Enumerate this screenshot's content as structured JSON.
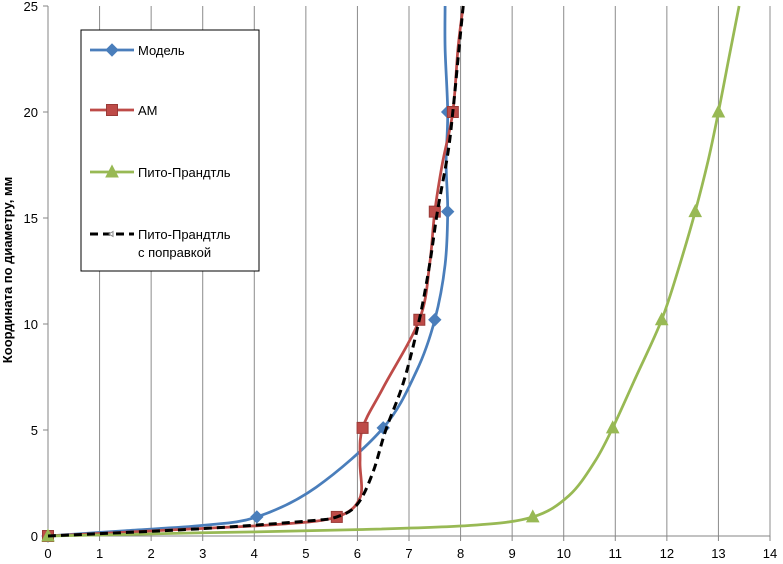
{
  "chart_data": {
    "type": "line",
    "title": "",
    "xlabel": "",
    "ylabel": "Координата по диаметру, мм",
    "xlim": [
      0,
      14
    ],
    "ylim": [
      0,
      25
    ],
    "xticks": [
      0,
      1,
      2,
      3,
      4,
      5,
      6,
      7,
      8,
      9,
      10,
      11,
      12,
      13,
      14
    ],
    "yticks": [
      0,
      5,
      10,
      15,
      20,
      25
    ],
    "grid": "vertical",
    "legend_position": "top-left",
    "series": [
      {
        "name": "Модель",
        "color": "#4a7ebb",
        "marker": "diamond",
        "dashed": false,
        "points": [
          [
            0,
            0
          ],
          [
            4.05,
            0.9
          ],
          [
            6.5,
            5.1
          ],
          [
            7.5,
            10.2
          ],
          [
            7.75,
            15.3
          ],
          [
            7.75,
            20.0
          ]
        ],
        "curve": [
          [
            0,
            0
          ],
          [
            1.5,
            0.25
          ],
          [
            3,
            0.5
          ],
          [
            4.05,
            0.9
          ],
          [
            5.2,
            2.3
          ],
          [
            6.5,
            5.1
          ],
          [
            7.15,
            7.8
          ],
          [
            7.5,
            10.2
          ],
          [
            7.7,
            12.8
          ],
          [
            7.75,
            15.3
          ],
          [
            7.72,
            17.6
          ],
          [
            7.75,
            20.0
          ],
          [
            7.7,
            23
          ],
          [
            7.7,
            25
          ]
        ]
      },
      {
        "name": "АМ",
        "color": "#be4b48",
        "marker": "square",
        "dashed": false,
        "points": [
          [
            0,
            0
          ],
          [
            5.6,
            0.9
          ],
          [
            6.1,
            5.1
          ],
          [
            7.2,
            10.2
          ],
          [
            7.5,
            15.3
          ],
          [
            7.85,
            20.0
          ]
        ],
        "curve": [
          [
            0,
            0
          ],
          [
            2.5,
            0.3
          ],
          [
            4.5,
            0.55
          ],
          [
            5.6,
            0.9
          ],
          [
            6.05,
            1.8
          ],
          [
            6.05,
            3.5
          ],
          [
            6.1,
            5.1
          ],
          [
            6.5,
            7.0
          ],
          [
            7.2,
            10.2
          ],
          [
            7.4,
            12.8
          ],
          [
            7.5,
            15.3
          ],
          [
            7.65,
            17.6
          ],
          [
            7.85,
            20.0
          ],
          [
            7.95,
            23
          ],
          [
            8.05,
            25
          ]
        ]
      },
      {
        "name": "Пито-Прандтль",
        "color": "#98b954",
        "marker": "triangle",
        "dashed": false,
        "points": [
          [
            0,
            0
          ],
          [
            9.4,
            0.9
          ],
          [
            10.95,
            5.1
          ],
          [
            11.9,
            10.2
          ],
          [
            12.55,
            15.3
          ],
          [
            13.0,
            20.0
          ]
        ],
        "curve": [
          [
            0,
            0
          ],
          [
            3,
            0.15
          ],
          [
            6,
            0.3
          ],
          [
            8.2,
            0.5
          ],
          [
            9.4,
            0.9
          ],
          [
            10.1,
            1.9
          ],
          [
            10.6,
            3.5
          ],
          [
            10.95,
            5.1
          ],
          [
            11.4,
            7.5
          ],
          [
            11.9,
            10.2
          ],
          [
            12.25,
            12.8
          ],
          [
            12.55,
            15.3
          ],
          [
            12.8,
            17.7
          ],
          [
            13.0,
            20.0
          ],
          [
            13.2,
            22.5
          ],
          [
            13.4,
            25
          ]
        ]
      },
      {
        "name": "Пито-Прандтль с поправкой",
        "name_lines": [
          "Пито-Прандтль",
          "с поправкой"
        ],
        "color": "#000000",
        "marker": "none",
        "dashed": true,
        "points": [],
        "curve": [
          [
            0,
            0
          ],
          [
            3,
            0.35
          ],
          [
            5,
            0.7
          ],
          [
            5.6,
            0.9
          ],
          [
            6.0,
            1.5
          ],
          [
            6.3,
            3.0
          ],
          [
            6.55,
            5.0
          ],
          [
            6.9,
            7.3
          ],
          [
            7.2,
            10.2
          ],
          [
            7.4,
            12.8
          ],
          [
            7.55,
            15.3
          ],
          [
            7.75,
            18.0
          ],
          [
            7.85,
            20.0
          ],
          [
            7.95,
            22.5
          ],
          [
            8.05,
            25
          ]
        ]
      }
    ]
  }
}
